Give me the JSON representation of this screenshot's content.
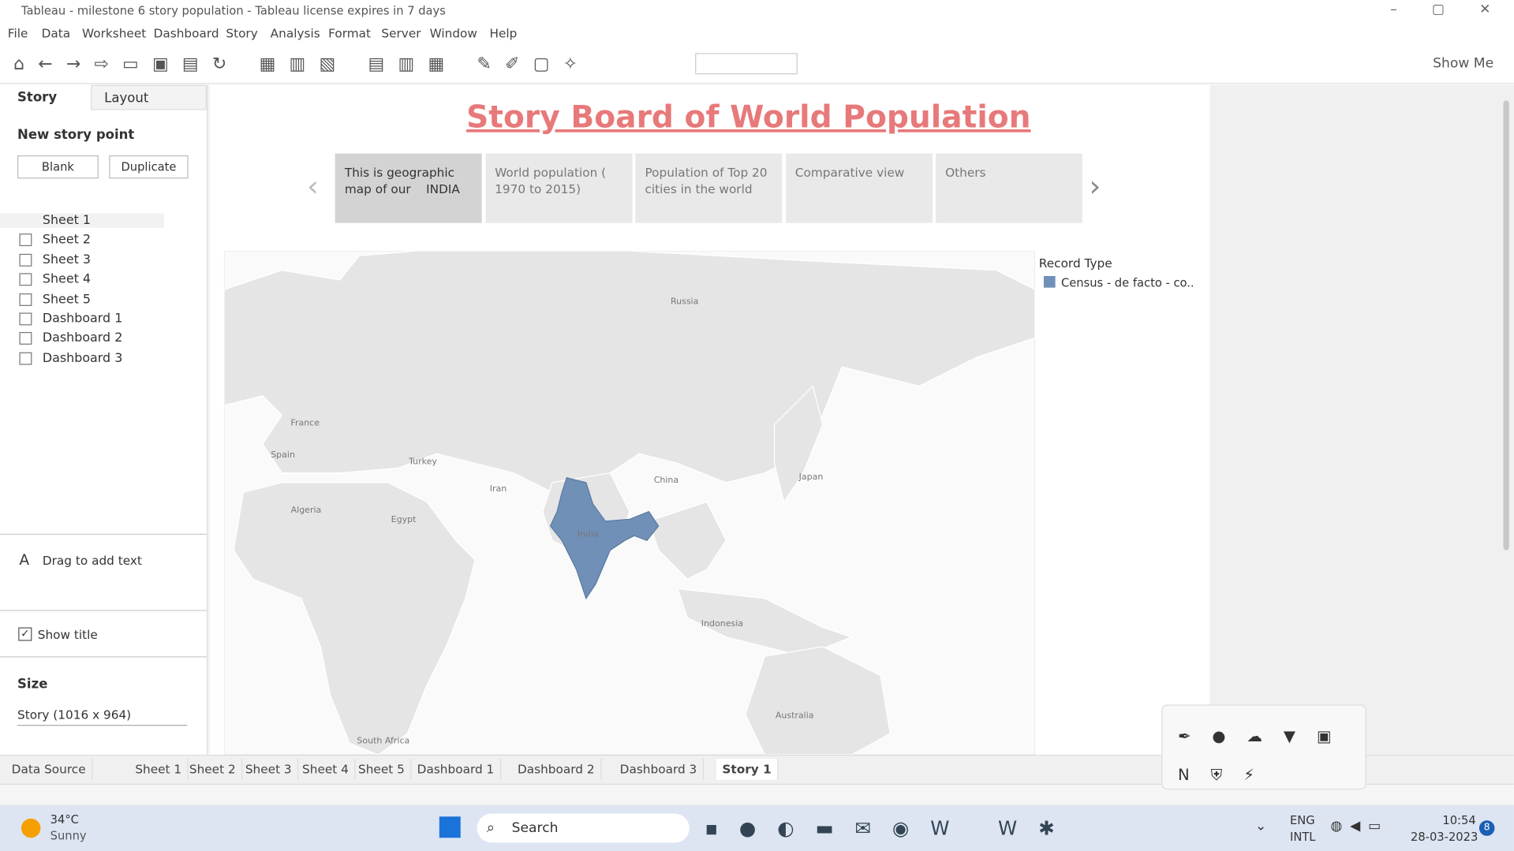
{
  "window": {
    "title": "Tableau - milestone 6 story population - Tableau license expires in 7 days"
  },
  "menu": [
    "File",
    "Data",
    "Worksheet",
    "Dashboard",
    "Story",
    "Analysis",
    "Format",
    "Server",
    "Window",
    "Help"
  ],
  "toolbar": {
    "show_me": "Show Me"
  },
  "side_panel": {
    "tabs": [
      "Story",
      "Layout"
    ],
    "new_story_point": "New story point",
    "buttons": [
      "Blank",
      "Duplicate"
    ],
    "sheets": [
      "Sheet 1",
      "Sheet 2",
      "Sheet 3",
      "Sheet 4",
      "Sheet 5",
      "Dashboard 1",
      "Dashboard 2",
      "Dashboard 3"
    ],
    "drag_text": "Drag to add text",
    "show_title": "Show title",
    "size_label": "Size",
    "size_value": "Story (1016 x 964)"
  },
  "story": {
    "title": "Story Board of World Population",
    "points": [
      "This is geographic map of our    INDIA",
      "World population ( 1970 to 2015)",
      "Population of Top 20 cities in the world",
      "Comparative view",
      "Others"
    ],
    "map_labels": [
      "Russia",
      "France",
      "Spain",
      "Turkey",
      "Iran",
      "China",
      "Japan",
      "Algeria",
      "Egypt",
      "India",
      "Indonesia",
      "Australia",
      "South Africa"
    ],
    "legend": {
      "title": "Record Type",
      "items": [
        "Census - de facto - co.."
      ]
    }
  },
  "tabs": [
    "Data Source",
    "Sheet 1",
    "Sheet 2",
    "Sheet 3",
    "Sheet 4",
    "Sheet 5",
    "Dashboard 1",
    "Dashboard 2",
    "Dashboard 3",
    "Story 1"
  ],
  "taskbar": {
    "weather_temp": "34°C",
    "weather_text": "Sunny",
    "search": "Search",
    "lang": [
      "ENG",
      "INTL"
    ],
    "time": "10:54",
    "date": "28-03-2023",
    "badge": "8"
  }
}
